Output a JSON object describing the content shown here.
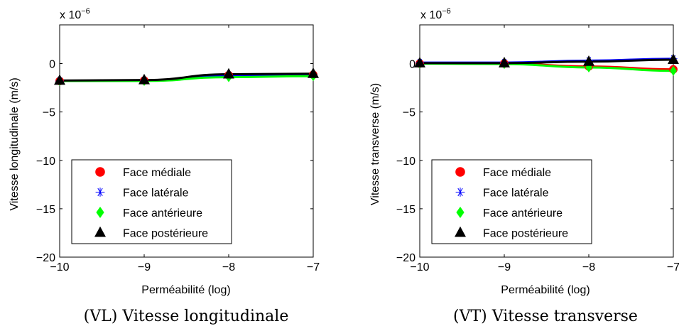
{
  "chart_data": [
    {
      "type": "line",
      "title": "",
      "caption": "(VL) Vitesse longitudinale",
      "xlabel": "Perméabilité (log)",
      "ylabel": "Vitesse longitudinale (m/s)",
      "scale_label": "x 10",
      "scale_exponent": "−6",
      "xlim": [
        -10,
        -7
      ],
      "ylim": [
        -20,
        4
      ],
      "x_ticks": [
        -10,
        -9,
        -8,
        -7
      ],
      "x_tick_labels": [
        "−10",
        "−9",
        "−8",
        "−7"
      ],
      "y_ticks": [
        -20,
        -15,
        -10,
        -5,
        0
      ],
      "y_tick_labels": [
        "−20",
        "−15",
        "−10",
        "−5",
        "0"
      ],
      "grid": false,
      "legend_position": "bottom-left",
      "x": [
        -10,
        -9,
        -8,
        -7
      ],
      "series": [
        {
          "name": "Face médiale",
          "values": [
            -1.8,
            -1.75,
            -1.2,
            -1.15
          ],
          "color": "#ff0000",
          "marker": "circle"
        },
        {
          "name": "Face latérale",
          "values": [
            -1.8,
            -1.75,
            -1.2,
            -1.15
          ],
          "color": "#0000ff",
          "marker": "star"
        },
        {
          "name": "Face antérieure",
          "values": [
            -1.8,
            -1.8,
            -1.4,
            -1.3
          ],
          "color": "#00ff00",
          "marker": "diamond"
        },
        {
          "name": "Face postérieure",
          "values": [
            -1.75,
            -1.7,
            -1.1,
            -1.05
          ],
          "color": "#000000",
          "marker": "triangle"
        }
      ]
    },
    {
      "type": "line",
      "title": "",
      "caption": "(VT) Vitesse transverse",
      "xlabel": "Perméabilité (log)",
      "ylabel": "Vitesse transverse (m/s)",
      "scale_label": "x 10",
      "scale_exponent": "−6",
      "xlim": [
        -10,
        -7
      ],
      "ylim": [
        -20,
        4
      ],
      "x_ticks": [
        -10,
        -9,
        -8,
        -7
      ],
      "x_tick_labels": [
        "−10",
        "−9",
        "−8",
        "−7"
      ],
      "y_ticks": [
        -20,
        -15,
        -10,
        -5,
        0
      ],
      "y_tick_labels": [
        "−20",
        "−15",
        "−10",
        "−5",
        "0"
      ],
      "grid": false,
      "legend_position": "bottom-left",
      "x": [
        -10,
        -9,
        -8,
        -7
      ],
      "series": [
        {
          "name": "Face médiale",
          "values": [
            0.0,
            0.0,
            -0.3,
            -0.6
          ],
          "color": "#ff0000",
          "marker": "circle"
        },
        {
          "name": "Face latérale",
          "values": [
            0.1,
            0.1,
            0.3,
            0.5
          ],
          "color": "#0000ff",
          "marker": "star"
        },
        {
          "name": "Face antérieure",
          "values": [
            0.0,
            -0.05,
            -0.4,
            -0.75
          ],
          "color": "#00ff00",
          "marker": "diamond"
        },
        {
          "name": "Face postérieure",
          "values": [
            0.05,
            0.05,
            0.2,
            0.4
          ],
          "color": "#000000",
          "marker": "triangle"
        }
      ]
    }
  ]
}
